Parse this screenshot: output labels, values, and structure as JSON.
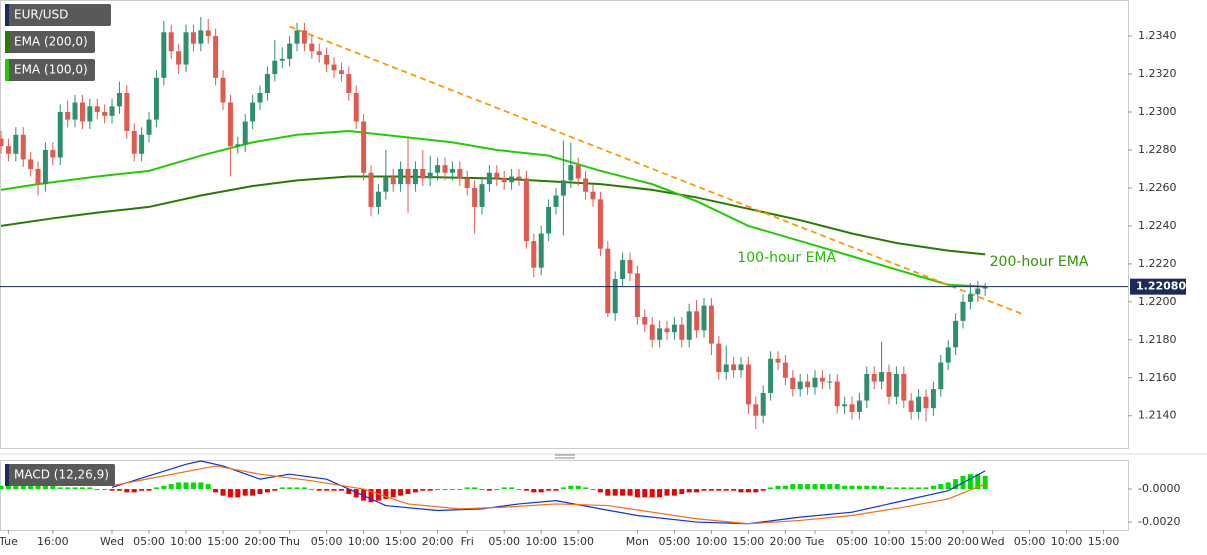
{
  "chart_data": {
    "type": "candlestick",
    "title": "EUR/USD",
    "x": [
      0,
      1,
      2,
      3,
      4,
      5,
      6,
      7,
      8,
      9,
      10,
      11,
      12,
      13,
      14,
      15,
      16,
      17,
      18,
      19,
      20,
      21,
      22,
      23,
      24,
      25,
      26,
      27,
      28,
      29,
      30,
      31,
      32,
      33,
      34,
      35,
      36,
      37,
      38,
      39,
      40,
      41,
      42,
      43,
      44,
      45,
      46,
      47,
      48,
      49,
      50,
      51,
      52,
      53,
      54,
      55,
      56,
      57,
      58,
      59,
      60,
      61,
      62,
      63,
      64,
      65,
      66,
      67,
      68,
      69,
      70,
      71,
      72,
      73,
      74,
      75,
      76,
      77,
      78,
      79,
      80,
      81,
      82,
      83,
      84,
      85,
      86,
      87,
      88,
      89,
      90,
      91,
      92,
      93,
      94,
      95,
      96,
      97,
      98,
      99,
      100,
      101,
      102,
      103,
      104,
      105,
      106,
      107,
      108,
      109,
      110,
      111,
      112,
      113,
      114,
      115,
      116,
      117,
      118,
      119,
      120,
      121,
      122,
      123,
      124,
      125,
      126,
      127,
      128,
      129,
      130,
      131,
      132,
      133
    ],
    "open": [
      1.2286,
      1.2282,
      1.2278,
      1.2288,
      1.2275,
      1.227,
      1.2262,
      1.228,
      1.2276,
      1.23,
      1.2296,
      1.2305,
      1.2295,
      1.2303,
      1.23,
      1.2298,
      1.2303,
      1.231,
      1.229,
      1.2278,
      1.2288,
      1.2296,
      1.2318,
      1.2342,
      1.2332,
      1.2325,
      1.2342,
      1.2336,
      1.2343,
      1.234,
      1.2318,
      1.2305,
      1.2282,
      1.2283,
      1.2295,
      1.2305,
      1.231,
      1.232,
      1.2327,
      1.2328,
      1.2336,
      1.2343,
      1.2336,
      1.2332,
      1.233,
      1.2325,
      1.2322,
      1.232,
      1.231,
      1.2295,
      1.2268,
      1.225,
      1.2258,
      1.2266,
      1.2262,
      1.227,
      1.2262,
      1.227,
      1.2265,
      1.2268,
      1.2272,
      1.2268,
      1.227,
      1.2265,
      1.226,
      1.225,
      1.2262,
      1.2268,
      1.2265,
      1.2263,
      1.2266,
      1.2265,
      1.2232,
      1.2218,
      1.2236,
      1.225,
      1.2256,
      1.2264,
      1.2272,
      1.2265,
      1.2258,
      1.2254,
      1.2228,
      1.2194,
      1.2212,
      1.2222,
      1.2215,
      1.2192,
      1.2188,
      1.218,
      1.2186,
      1.2184,
      1.2188,
      1.218,
      1.2195,
      1.2185,
      1.2198,
      1.2178,
      1.2163,
      1.2167,
      1.2164,
      1.2167,
      1.2146,
      1.214,
      1.2152,
      1.217,
      1.2168,
      1.216,
      1.2154,
      1.2158,
      1.2155,
      1.216,
      1.2158,
      1.2158,
      1.2145,
      1.2146,
      1.2142,
      1.2148,
      1.2162,
      1.2158,
      1.2163,
      1.215,
      1.2162,
      1.2148,
      1.2142,
      1.215,
      1.2144,
      1.2154,
      1.2168,
      1.2176,
      1.219,
      1.22,
      1.2204,
      1.2207
    ],
    "high": [
      1.229,
      1.2286,
      1.2292,
      1.2292,
      1.2279,
      1.2274,
      1.2284,
      1.2284,
      1.2304,
      1.2306,
      1.2309,
      1.2309,
      1.2307,
      1.2307,
      1.2304,
      1.2307,
      1.2316,
      1.2314,
      1.2294,
      1.2292,
      1.23,
      1.2322,
      1.2348,
      1.2346,
      1.2336,
      1.2346,
      1.2346,
      1.235,
      1.2349,
      1.2344,
      1.2322,
      1.2309,
      1.2287,
      1.2299,
      1.2309,
      1.2314,
      1.2324,
      1.2338,
      1.2334,
      1.234,
      1.2347,
      1.2347,
      1.234,
      1.2336,
      1.2334,
      1.2329,
      1.2326,
      1.2324,
      1.2314,
      1.2299,
      1.2272,
      1.2262,
      1.228,
      1.227,
      1.2274,
      1.2286,
      1.2274,
      1.228,
      1.2277,
      1.2276,
      1.2276,
      1.2274,
      1.2274,
      1.2269,
      1.2264,
      1.2266,
      1.2272,
      1.2272,
      1.2269,
      1.227,
      1.227,
      1.2269,
      1.2236,
      1.224,
      1.2254,
      1.226,
      1.2285,
      1.2284,
      1.2276,
      1.2269,
      1.2262,
      1.2258,
      1.2232,
      1.2216,
      1.2226,
      1.2226,
      1.2219,
      1.2196,
      1.2192,
      1.219,
      1.219,
      1.2192,
      1.2192,
      1.2199,
      1.2201,
      1.2202,
      1.2202,
      1.2182,
      1.2177,
      1.2171,
      1.2171,
      1.2171,
      1.215,
      1.2156,
      1.2174,
      1.2174,
      1.2172,
      1.2164,
      1.2162,
      1.2162,
      1.2164,
      1.2164,
      1.2162,
      1.2162,
      1.215,
      1.215,
      1.2152,
      1.2166,
      1.2166,
      1.2179,
      1.2167,
      1.2166,
      1.2166,
      1.2152,
      1.2154,
      1.2154,
      1.2158,
      1.2172,
      1.218,
      1.2194,
      1.2204,
      1.221,
      1.2211,
      1.221
    ],
    "low": [
      1.2278,
      1.2274,
      1.2274,
      1.2271,
      1.2266,
      1.2256,
      1.2258,
      1.2272,
      1.2272,
      1.2292,
      1.2292,
      1.2291,
      1.2291,
      1.2296,
      1.2294,
      1.2294,
      1.2299,
      1.2286,
      1.2274,
      1.2274,
      1.2284,
      1.2292,
      1.2314,
      1.2328,
      1.232,
      1.2321,
      1.2332,
      1.2332,
      1.2336,
      1.2314,
      1.2301,
      1.2266,
      1.2278,
      1.2279,
      1.2291,
      1.2301,
      1.2306,
      1.2316,
      1.2323,
      1.2324,
      1.2332,
      1.2332,
      1.2328,
      1.2326,
      1.2321,
      1.2318,
      1.2316,
      1.2306,
      1.2291,
      1.2264,
      1.2245,
      1.2246,
      1.2254,
      1.2258,
      1.2258,
      1.2247,
      1.2258,
      1.2261,
      1.2261,
      1.2264,
      1.2264,
      1.2264,
      1.2261,
      1.2256,
      1.2236,
      1.2246,
      1.2258,
      1.2261,
      1.2259,
      1.2259,
      1.2261,
      1.2228,
      1.2213,
      1.2214,
      1.2232,
      1.2246,
      1.2235,
      1.226,
      1.2261,
      1.2254,
      1.225,
      1.2224,
      1.2192,
      1.219,
      1.2208,
      1.2211,
      1.2188,
      1.2184,
      1.2176,
      1.2176,
      1.218,
      1.218,
      1.2176,
      1.2176,
      1.2181,
      1.2181,
      1.2172,
      1.2159,
      1.2159,
      1.216,
      1.216,
      1.2141,
      1.2133,
      1.2136,
      1.2148,
      1.2164,
      1.2156,
      1.215,
      1.215,
      1.2151,
      1.2151,
      1.2154,
      1.2154,
      1.2141,
      1.2141,
      1.2138,
      1.2138,
      1.2144,
      1.2154,
      1.2154,
      1.2146,
      1.2146,
      1.2144,
      1.2138,
      1.2138,
      1.2137,
      1.214,
      1.215,
      1.2164,
      1.2172,
      1.2186,
      1.2196,
      1.22,
      1.2203
    ],
    "close": [
      1.2282,
      1.2278,
      1.2288,
      1.2275,
      1.227,
      1.2262,
      1.228,
      1.2276,
      1.23,
      1.2296,
      1.2305,
      1.2295,
      1.2303,
      1.23,
      1.2298,
      1.2303,
      1.231,
      1.229,
      1.2278,
      1.2288,
      1.2296,
      1.2318,
      1.2342,
      1.2332,
      1.2325,
      1.2342,
      1.2336,
      1.2343,
      1.234,
      1.2318,
      1.2305,
      1.2282,
      1.2283,
      1.2295,
      1.2305,
      1.231,
      1.232,
      1.2327,
      1.2328,
      1.2336,
      1.2343,
      1.2336,
      1.2332,
      1.233,
      1.2325,
      1.2322,
      1.232,
      1.231,
      1.2295,
      1.2268,
      1.225,
      1.2258,
      1.2266,
      1.2262,
      1.227,
      1.2262,
      1.227,
      1.2265,
      1.2268,
      1.2272,
      1.2268,
      1.227,
      1.2265,
      1.226,
      1.225,
      1.2262,
      1.2268,
      1.2265,
      1.2263,
      1.2266,
      1.2265,
      1.2232,
      1.2218,
      1.2236,
      1.225,
      1.2256,
      1.2264,
      1.2272,
      1.2265,
      1.2258,
      1.2254,
      1.2228,
      1.2194,
      1.2212,
      1.2222,
      1.2215,
      1.2192,
      1.2188,
      1.218,
      1.2186,
      1.2184,
      1.2188,
      1.218,
      1.2195,
      1.2185,
      1.2198,
      1.2178,
      1.2163,
      1.2167,
      1.2164,
      1.2167,
      1.2146,
      1.214,
      1.2152,
      1.217,
      1.2168,
      1.216,
      1.2154,
      1.2158,
      1.2155,
      1.216,
      1.2158,
      1.2158,
      1.2145,
      1.2146,
      1.2142,
      1.2148,
      1.2162,
      1.2158,
      1.2163,
      1.215,
      1.2162,
      1.2148,
      1.2142,
      1.215,
      1.2144,
      1.2154,
      1.2168,
      1.2176,
      1.219,
      1.22,
      1.2204,
      1.2207,
      1.2208
    ],
    "up_color": "#2e8f6f",
    "down_color": "#e05a4f",
    "xlim": [
      -0.14,
      152.3
    ],
    "ylim": [
      1.2123,
      1.2359
    ],
    "yticks": [
      {
        "value": 1.214,
        "label": "1.2140"
      },
      {
        "value": 1.216,
        "label": "1.2160"
      },
      {
        "value": 1.218,
        "label": "1.2180"
      },
      {
        "value": 1.22,
        "label": "1.2200"
      },
      {
        "value": 1.222,
        "label": "1.2220"
      },
      {
        "value": 1.224,
        "label": "1.2240"
      },
      {
        "value": 1.226,
        "label": "1.2260"
      },
      {
        "value": 1.228,
        "label": "1.2280"
      },
      {
        "value": 1.23,
        "label": "1.2300"
      },
      {
        "value": 1.232,
        "label": "1.2320"
      },
      {
        "value": 1.234,
        "label": "1.2340"
      }
    ],
    "xticks": [
      {
        "value": 1,
        "label": "Tue"
      },
      {
        "value": 7,
        "label": "16:00"
      },
      {
        "value": 15,
        "label": "Wed"
      },
      {
        "value": 20,
        "label": "05:00"
      },
      {
        "value": 25,
        "label": "10:00"
      },
      {
        "value": 30,
        "label": "15:00"
      },
      {
        "value": 35,
        "label": "20:00"
      },
      {
        "value": 39,
        "label": "Thu"
      },
      {
        "value": 44,
        "label": "05:00"
      },
      {
        "value": 49,
        "label": "10:00"
      },
      {
        "value": 54,
        "label": "15:00"
      },
      {
        "value": 59,
        "label": "20:00"
      },
      {
        "value": 63,
        "label": "Fri"
      },
      {
        "value": 68,
        "label": "05:00"
      },
      {
        "value": 73,
        "label": "10:00"
      },
      {
        "value": 78,
        "label": "15:00"
      },
      {
        "value": 86,
        "label": "Mon"
      },
      {
        "value": 91,
        "label": "05:00"
      },
      {
        "value": 96,
        "label": "10:00"
      },
      {
        "value": 101,
        "label": "15:00"
      },
      {
        "value": 106,
        "label": "20:00"
      },
      {
        "value": 110,
        "label": "Tue"
      },
      {
        "value": 115,
        "label": "05:00"
      },
      {
        "value": 120,
        "label": "10:00"
      },
      {
        "value": 125,
        "label": "15:00"
      },
      {
        "value": 130,
        "label": "20:00"
      },
      {
        "value": 134,
        "label": "Wed"
      },
      {
        "value": 139,
        "label": "05:00"
      },
      {
        "value": 144,
        "label": "10:00"
      },
      {
        "value": 149,
        "label": "15:00"
      }
    ],
    "lines": [
      {
        "name": "EMA (200,0)",
        "color": "#2a7a00",
        "x": [
          0,
          7,
          13,
          20,
          27,
          34,
          40,
          47,
          54,
          67,
          81,
          88,
          94,
          101,
          108,
          115,
          121,
          128,
          133
        ],
        "values": [
          1.224,
          1.2244,
          1.2247,
          1.225,
          1.2256,
          1.2261,
          1.2264,
          1.2266,
          1.2266,
          1.2265,
          1.2262,
          1.2259,
          1.2255,
          1.2249,
          1.2243,
          1.2236,
          1.2231,
          1.2227,
          1.2225
        ]
      },
      {
        "name": "EMA (100,0)",
        "color": "#22cc00",
        "x": [
          0,
          5,
          13,
          20,
          27,
          34,
          40,
          47,
          54,
          61,
          67,
          74,
          81,
          88,
          94,
          101,
          108,
          115,
          121,
          128,
          133
        ],
        "values": [
          1.2259,
          1.2262,
          1.2266,
          1.2269,
          1.2277,
          1.2284,
          1.2288,
          1.229,
          1.2287,
          1.2284,
          1.228,
          1.2277,
          1.2269,
          1.2262,
          1.2253,
          1.224,
          1.2232,
          1.2224,
          1.2217,
          1.2209,
          1.2208
        ]
      }
    ],
    "trendline": {
      "color": "#ff9900",
      "x": [
        39,
        138.4
      ],
      "values": [
        1.2345,
        1.2193
      ]
    },
    "last_price": {
      "value": 1.2208,
      "label": "1.22080",
      "color": "#1c2a5a"
    },
    "annotations": [
      {
        "text": "100-hour EMA",
        "x": 99.5,
        "y": 1.2223,
        "color": "#22bb00"
      },
      {
        "text": "200-hour EMA",
        "x": 133.6,
        "y": 1.2221,
        "color": "#2a9a00"
      }
    ],
    "macd": {
      "title": "MACD (12,26,9)",
      "ylim": [
        -0.00248,
        0.00176
      ],
      "yticks": [
        {
          "value": 0,
          "label": "-0.0000"
        },
        {
          "value": -0.002,
          "label": "-0.0020"
        }
      ],
      "up_color": "#00dd00",
      "down_color": "#ee0000",
      "histogram": [
        0.0002,
        0.0002,
        0.0003,
        0.0003,
        0.0002,
        0.0002,
        0.0002,
        0.0002,
        0.0001,
        0.0001,
        0.0001,
        0.0001,
        0.0001,
        0,
        0,
        -0.0001,
        -0.0001,
        -0.0002,
        -0.0002,
        -0.0001,
        -0.0001,
        0.0001,
        0.0002,
        0.0003,
        0.0004,
        0.0004,
        0.0004,
        0.0004,
        0.0003,
        -0.0002,
        -0.0004,
        -0.0005,
        -0.0005,
        -0.0004,
        -0.0004,
        -0.0003,
        -0.0002,
        -0.0001,
        0.0001,
        0.0001,
        0.0001,
        0.0001,
        0,
        -0.0001,
        -0.0001,
        -0.0001,
        -0.0001,
        -0.0003,
        -0.0005,
        -0.0007,
        -0.0008,
        -0.0007,
        -0.0006,
        -0.0005,
        -0.0004,
        -0.0003,
        -0.0002,
        -0.0001,
        -0.0001,
        0,
        0,
        0,
        0,
        0.0001,
        0.0001,
        0,
        -0.0001,
        0,
        0.0001,
        0.0001,
        0,
        -0.0001,
        -0.0002,
        -0.0002,
        -0.0001,
        -0.0001,
        0.0001,
        0.0002,
        0.0002,
        0.0001,
        0,
        -0.0002,
        -0.0004,
        -0.0004,
        -0.0004,
        -0.0004,
        -0.0005,
        -0.0005,
        -0.0005,
        -0.0005,
        -0.0004,
        -0.0004,
        -0.0003,
        -0.0002,
        -0.0002,
        -0.0001,
        -0.0001,
        -0.0001,
        -0.0001,
        -0.0001,
        -0.0002,
        -0.0002,
        -0.0002,
        -0.0001,
        0.0001,
        0.0002,
        0.0002,
        0.0003,
        0.0003,
        0.0003,
        0.0003,
        0.0003,
        0.0003,
        0.0003,
        0.0002,
        0.0002,
        0.0002,
        0.0002,
        0.0002,
        0.0002,
        0.0001,
        0.0001,
        0.0001,
        0.0001,
        0.0001,
        0.0001,
        0.0002,
        0.0003,
        0.0004,
        0.0006,
        0.0008,
        0.0009,
        0.0009,
        0.0008
      ],
      "lines": [
        {
          "color": "#1030e0",
          "x": [
            15,
            20,
            25,
            27,
            30,
            35,
            39,
            44,
            48,
            52,
            59,
            65,
            70,
            75,
            81,
            86,
            94,
            101,
            108,
            115,
            121,
            128,
            133
          ],
          "values": [
            0.0001,
            0.0008,
            0.0015,
            0.0017,
            0.0014,
            0.0006,
            0.0009,
            0.0006,
            -0.0002,
            -0.001,
            -0.0013,
            -0.0012,
            -0.0009,
            -0.0007,
            -0.0012,
            -0.0016,
            -0.002,
            -0.0021,
            -0.0017,
            -0.0014,
            -0.0008,
            -0.0001,
            0.0011
          ]
        },
        {
          "color": "#f07010",
          "x": [
            15,
            22,
            29,
            35,
            42,
            49,
            55,
            62,
            68,
            75,
            82,
            88,
            94,
            101,
            108,
            115,
            122,
            128,
            133
          ],
          "values": [
            0.0002,
            0.0008,
            0.0014,
            0.0009,
            0.0005,
            0,
            -0.0009,
            -0.0012,
            -0.0011,
            -0.0009,
            -0.001,
            -0.0014,
            -0.0018,
            -0.0021,
            -0.0019,
            -0.0016,
            -0.0011,
            -0.0006,
            0.0003
          ]
        }
      ]
    }
  }
}
